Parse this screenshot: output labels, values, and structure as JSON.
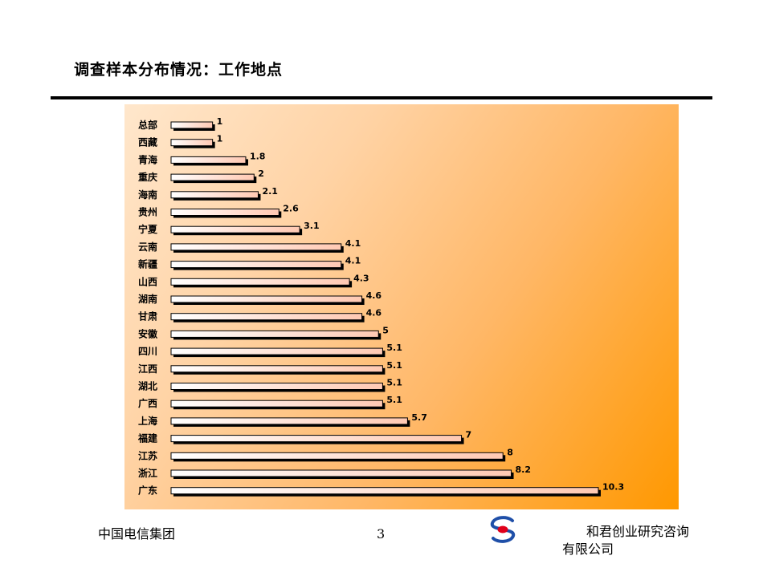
{
  "page": {
    "title": "调查样本分布情况：工作地点",
    "footer_left": "中国电信集团",
    "page_number": "3",
    "footer_right_line1": "和君创业研究咨询",
    "footer_right_line2": "有限公司",
    "logo_icon": "company-logo-icon"
  },
  "chart_data": {
    "type": "bar",
    "orientation": "horizontal",
    "categories": [
      "总部",
      "西藏",
      "青海",
      "重庆",
      "海南",
      "贵州",
      "宁夏",
      "云南",
      "新疆",
      "山西",
      "湖南",
      "甘肃",
      "安徽",
      "四川",
      "江西",
      "湖北",
      "广西",
      "上海",
      "福建",
      "江苏",
      "浙江",
      "广东"
    ],
    "values": [
      1,
      1,
      1.8,
      2,
      2.1,
      2.6,
      3.1,
      4.1,
      4.1,
      4.3,
      4.6,
      4.6,
      5,
      5.1,
      5.1,
      5.1,
      5.1,
      5.7,
      7,
      8,
      8.2,
      10.3
    ],
    "value_labels": [
      "1",
      "1",
      "1.8",
      "2",
      "2.1",
      "2.6",
      "3.1",
      "4.1",
      "4.1",
      "4.3",
      "4.6",
      "4.6",
      "5",
      "5.1",
      "5.1",
      "5.1",
      "5.1",
      "5.7",
      "7",
      "8",
      "8.2",
      "10.3"
    ],
    "xlim": [
      0,
      10.3
    ],
    "grid": false,
    "colors": {
      "bar_fill_start": "#ffffff",
      "bar_fill_end": "#ffc9b3",
      "bar_shadow": "#000000",
      "background_light": "#ffe7cc",
      "background_dark": "#ff9800"
    }
  }
}
